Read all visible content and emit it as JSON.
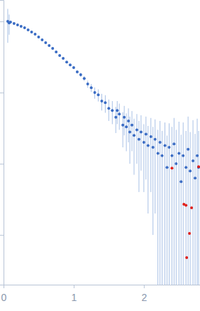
{
  "chart_data": {
    "type": "scatter",
    "log": "y",
    "tick_labels": "x",
    "xlim": [
      0,
      2.8
    ],
    "xticks": [
      0,
      1,
      2
    ],
    "ylim": [
      0.0002,
      2
    ],
    "yticks": [
      0.001,
      0.01,
      0.1,
      1
    ],
    "series": [
      {
        "color": "#3a6cc4",
        "marker": "circle",
        "x": [
          0.06,
          0.08,
          0.1,
          0.15,
          0.2,
          0.25,
          0.3,
          0.35,
          0.4,
          0.45,
          0.5,
          0.55,
          0.6,
          0.65,
          0.7,
          0.75,
          0.8,
          0.85,
          0.9,
          0.95,
          1.0,
          1.05,
          1.1,
          1.15,
          1.2,
          1.25,
          1.3,
          1.35,
          1.4,
          1.45,
          1.5,
          1.55,
          1.6,
          1.62,
          1.65,
          1.7,
          1.72,
          1.75,
          1.78,
          1.8,
          1.83,
          1.86,
          1.9,
          1.93,
          1.96,
          2.0,
          2.03,
          2.06,
          2.1,
          2.13,
          2.16,
          2.2,
          2.23,
          2.26,
          2.3,
          2.33,
          2.36,
          2.4,
          2.43,
          2.46,
          2.5,
          2.53,
          2.56,
          2.6,
          2.63,
          2.66,
          2.7,
          2.73,
          2.76,
          2.78
        ],
        "values": [
          1.0,
          0.95,
          0.977,
          0.933,
          0.891,
          0.851,
          0.813,
          0.759,
          0.708,
          0.661,
          0.603,
          0.55,
          0.501,
          0.457,
          0.417,
          0.372,
          0.331,
          0.302,
          0.269,
          0.245,
          0.224,
          0.195,
          0.178,
          0.158,
          0.132,
          0.117,
          0.1,
          0.093,
          0.076,
          0.072,
          0.06,
          0.056,
          0.045,
          0.056,
          0.05,
          0.035,
          0.045,
          0.033,
          0.04,
          0.028,
          0.035,
          0.025,
          0.03,
          0.022,
          0.028,
          0.02,
          0.026,
          0.018,
          0.024,
          0.017,
          0.022,
          0.014,
          0.02,
          0.013,
          0.018,
          0.0089,
          0.017,
          0.013,
          0.019,
          0.01,
          0.014,
          0.0056,
          0.013,
          0.0089,
          0.016,
          0.0079,
          0.011,
          0.0063,
          0.013,
          0.0089
        ],
        "errors": [
          0.5,
          0.3,
          0.02,
          0.01,
          0.008,
          0.008,
          0.008,
          0.008,
          0.008,
          0.008,
          0.008,
          0.008,
          0.008,
          0.008,
          0.008,
          0.008,
          0.008,
          0.008,
          0.008,
          0.008,
          0.01,
          0.01,
          0.012,
          0.012,
          0.015,
          0.015,
          0.018,
          0.018,
          0.02,
          0.02,
          0.02,
          0.02,
          0.018,
          0.02,
          0.02,
          0.018,
          0.02,
          0.018,
          0.02,
          0.018,
          0.02,
          0.018,
          0.02,
          0.018,
          0.02,
          0.016,
          0.02,
          0.016,
          0.02,
          0.016,
          0.02,
          0.016,
          0.02,
          0.016,
          0.02,
          0.016,
          0.02,
          0.02,
          0.025,
          0.02,
          0.025,
          0.02,
          0.025,
          0.02,
          0.03,
          0.02,
          0.03,
          0.02,
          0.03,
          0.02
        ]
      },
      {
        "color": "#e0201b",
        "marker": "circle",
        "x": [
          2.4,
          2.57,
          2.6,
          2.61,
          2.65,
          2.68,
          2.78
        ],
        "values": [
          0.0087,
          0.0027,
          0.0026,
          0.00048,
          0.00105,
          0.0024,
          0.0091
        ]
      }
    ]
  }
}
